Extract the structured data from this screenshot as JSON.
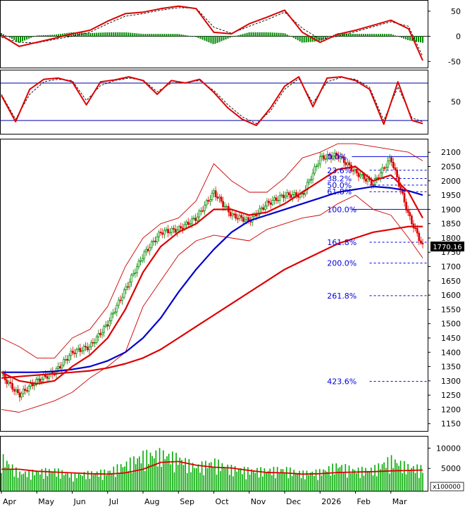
{
  "chart_data": [
    {
      "type": "line",
      "panel": "macd",
      "y_ticks": [
        "50",
        "0",
        "-50"
      ],
      "y_tick_values": [
        50,
        0,
        -50
      ],
      "ylim": [
        -58,
        68
      ],
      "colors": {
        "macd": "#dd0000",
        "signal": "#000000",
        "histogram": "#008800"
      },
      "x": [
        0,
        0.5,
        1,
        1.5,
        2,
        2.5,
        3,
        3.5,
        4,
        4.5,
        5,
        5.5,
        6,
        6.5,
        7,
        7.5,
        8,
        8.5,
        9,
        9.5,
        10,
        10.5,
        11,
        11.5,
        11.9
      ],
      "macd": [
        2,
        -20,
        -12,
        -4,
        5,
        12,
        30,
        45,
        48,
        55,
        60,
        55,
        8,
        5,
        25,
        38,
        52,
        8,
        -12,
        4,
        12,
        22,
        32,
        15,
        -48
      ],
      "signal": [
        -2,
        -12,
        -13,
        -6,
        0,
        8,
        25,
        40,
        45,
        52,
        57,
        56,
        18,
        6,
        20,
        33,
        48,
        16,
        -6,
        0,
        9,
        19,
        29,
        20,
        -40
      ]
    },
    {
      "type": "line",
      "panel": "stochastic",
      "y_ticks": [
        "50"
      ],
      "y_tick_values": [
        50
      ],
      "ylim": [
        2,
        98
      ],
      "levels": [
        80,
        20
      ],
      "colors": {
        "k": "#dd0000",
        "d": "#000000",
        "levels": "#0000aa"
      },
      "x": [
        0,
        0.4,
        0.8,
        1.2,
        1.6,
        2,
        2.4,
        2.8,
        3.2,
        3.6,
        4,
        4.4,
        4.8,
        5.2,
        5.6,
        6,
        6.4,
        6.8,
        7.2,
        7.6,
        8,
        8.4,
        8.8,
        9.2,
        9.6,
        10,
        10.4,
        10.8,
        11.2,
        11.6,
        11.9
      ],
      "k": [
        60,
        18,
        70,
        86,
        88,
        82,
        45,
        82,
        85,
        90,
        84,
        62,
        84,
        80,
        86,
        65,
        40,
        22,
        12,
        40,
        75,
        90,
        42,
        88,
        90,
        84,
        70,
        14,
        82,
        20,
        15
      ],
      "d": [
        62,
        22,
        62,
        82,
        86,
        84,
        52,
        76,
        84,
        88,
        85,
        66,
        80,
        81,
        84,
        68,
        45,
        26,
        15,
        35,
        70,
        87,
        48,
        82,
        89,
        86,
        73,
        20,
        74,
        24,
        18
      ]
    },
    {
      "type": "line",
      "panel": "price",
      "y_ticks": [
        "2100",
        "2050",
        "2000",
        "1950",
        "1900",
        "1850",
        "1800",
        "1750",
        "1700",
        "1650",
        "1600",
        "1550",
        "1500",
        "1450",
        "1400",
        "1350",
        "1300",
        "1250",
        "1200",
        "1150"
      ],
      "y_tick_values": [
        2100,
        2050,
        2000,
        1950,
        1900,
        1850,
        1800,
        1750,
        1700,
        1650,
        1600,
        1550,
        1500,
        1450,
        1400,
        1350,
        1300,
        1250,
        1200,
        1150
      ],
      "ylim": [
        1132,
        2140
      ],
      "x_ticks": [
        "Apr",
        "May",
        "Jun",
        "Jul",
        "Aug",
        "Sep",
        "Oct",
        "Nov",
        "Dec",
        "2026",
        "Feb",
        "Mar"
      ],
      "x": [
        0,
        0.5,
        1,
        1.5,
        2,
        2.5,
        3,
        3.5,
        4,
        4.5,
        5,
        5.5,
        6,
        6.5,
        7,
        7.5,
        8,
        8.5,
        9,
        9.5,
        10,
        10.5,
        11,
        11.5,
        11.9
      ],
      "close": [
        1320,
        1250,
        1300,
        1330,
        1400,
        1420,
        1500,
        1620,
        1740,
        1820,
        1830,
        1870,
        1960,
        1880,
        1860,
        1920,
        1950,
        1950,
        2080,
        2090,
        2030,
        1990,
        2080,
        1880,
        1770
      ],
      "last_price": "1770.16",
      "ma_short": [
        1330,
        1300,
        1290,
        1300,
        1350,
        1390,
        1450,
        1550,
        1680,
        1770,
        1820,
        1850,
        1900,
        1900,
        1880,
        1890,
        1920,
        1960,
        2000,
        2040,
        2050,
        2000,
        2020,
        1960,
        1870
      ],
      "ma_medium": [
        1330,
        1330,
        1330,
        1333,
        1340,
        1350,
        1370,
        1400,
        1450,
        1520,
        1610,
        1690,
        1760,
        1820,
        1860,
        1880,
        1900,
        1920,
        1940,
        1960,
        1970,
        1980,
        1975,
        1965,
        1950
      ],
      "ma_long": [
        1310,
        1315,
        1320,
        1325,
        1330,
        1335,
        1345,
        1360,
        1380,
        1410,
        1450,
        1490,
        1530,
        1570,
        1610,
        1650,
        1690,
        1720,
        1750,
        1780,
        1800,
        1820,
        1830,
        1840,
        1840
      ],
      "bb_upper": [
        1450,
        1420,
        1380,
        1380,
        1450,
        1480,
        1560,
        1700,
        1800,
        1850,
        1870,
        1930,
        2060,
        2000,
        1960,
        1960,
        2010,
        2080,
        2100,
        2130,
        2130,
        2120,
        2110,
        2100,
        2070
      ],
      "bb_lower": [
        1200,
        1190,
        1210,
        1230,
        1260,
        1310,
        1350,
        1400,
        1560,
        1650,
        1740,
        1790,
        1810,
        1800,
        1790,
        1830,
        1850,
        1870,
        1880,
        1920,
        1950,
        1900,
        1880,
        1800,
        1730
      ],
      "colors": {
        "price_up": "#008800",
        "price_down": "#dd0000",
        "ma_short": "#dd0000",
        "ma_medium": "#0000cc",
        "ma_long": "#dd0000",
        "bollinger": "#cc0000",
        "fib": "#0000dd"
      },
      "fib_levels": [
        {
          "label": "0.0%",
          "price": 2085
        },
        {
          "label": "23.6%",
          "price": 2037
        },
        {
          "label": "38.2%",
          "price": 2008
        },
        {
          "label": "50.0%",
          "price": 1985
        },
        {
          "label": "61.8%",
          "price": 1962
        },
        {
          "label": "100.0%",
          "price": 1900
        },
        {
          "label": "161.8%",
          "price": 1785
        },
        {
          "label": "200.0%",
          "price": 1712
        },
        {
          "label": "261.8%",
          "price": 1598
        },
        {
          "label": "423.6%",
          "price": 1298
        }
      ]
    },
    {
      "type": "bar",
      "panel": "volume",
      "y_ticks": [
        "10000",
        "5000"
      ],
      "y_tick_values": [
        10000,
        5000
      ],
      "ylim": [
        0,
        12500
      ],
      "multiplier": "x100000",
      "colors": {
        "bars": "#00aa00",
        "ma": "#dd0000"
      },
      "x": [
        0,
        0.5,
        1,
        1.5,
        2,
        2.5,
        3,
        3.5,
        4,
        4.5,
        5,
        5.5,
        6,
        6.5,
        7,
        7.5,
        8,
        8.5,
        9,
        9.5,
        10,
        10.5,
        11,
        11.5,
        11.9
      ],
      "values": [
        6500,
        3200,
        3500,
        3800,
        2800,
        3200,
        3500,
        5000,
        6800,
        7200,
        6300,
        4500,
        5500,
        4200,
        3800,
        3800,
        4000,
        3200,
        3500,
        4800,
        3800,
        4000,
        6000,
        4500,
        4200
      ],
      "ma": [
        4800,
        4800,
        4300,
        4100,
        3900,
        3700,
        3600,
        3900,
        4800,
        6500,
        6700,
        5800,
        5300,
        5100,
        4500,
        4000,
        3900,
        3600,
        3700,
        4000,
        4100,
        4200,
        4400,
        4500,
        4600
      ]
    }
  ]
}
